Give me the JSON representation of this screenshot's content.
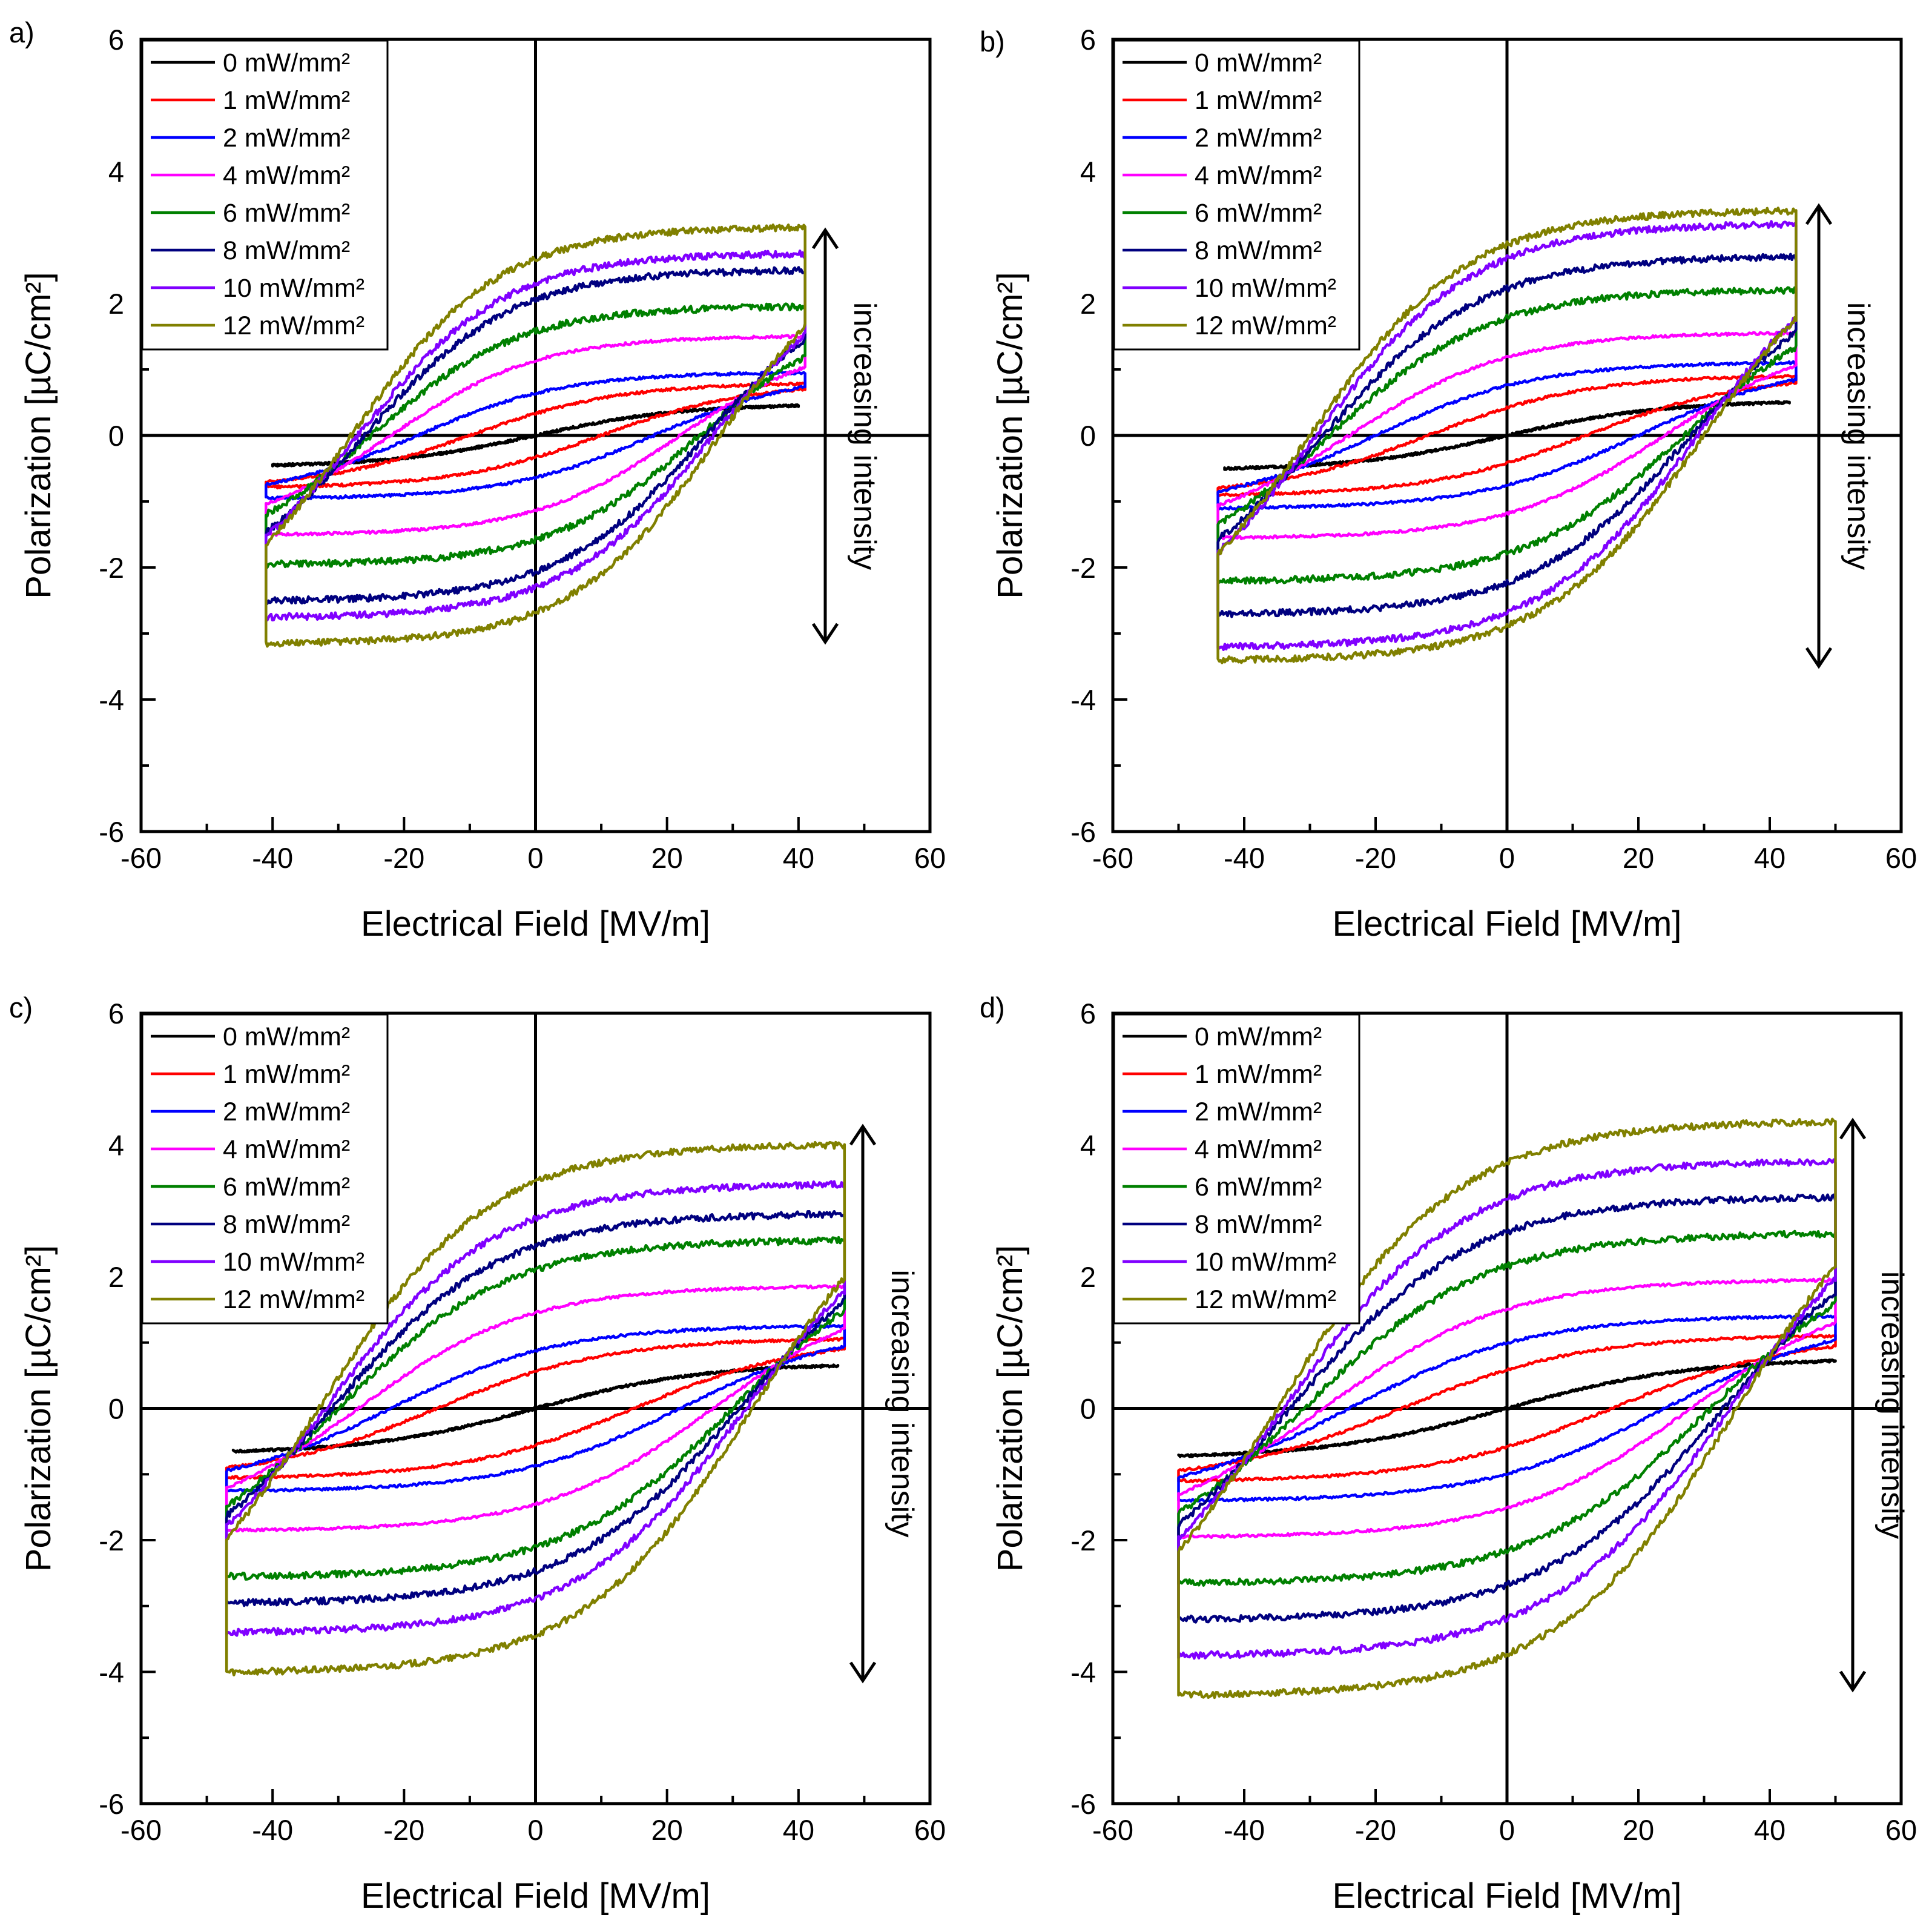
{
  "chart_data": [
    {
      "type": "line",
      "panel_label": "a)",
      "title": "",
      "xlabel": "Electrical Field [MV/m]",
      "ylabel": "Polarization [µC/cm²]",
      "xlim": [
        -60,
        60
      ],
      "ylim": [
        -6,
        6
      ],
      "xticks": [
        -60,
        -40,
        -20,
        0,
        20,
        40,
        60
      ],
      "yticks": [
        -6,
        -4,
        -2,
        0,
        2,
        4,
        6
      ],
      "annotation": "increasing intensity",
      "legend_position": "top-left",
      "series": [
        {
          "name": "0 mW/mm²",
          "color": "#000000",
          "emax": 40,
          "ps": 0.45,
          "ec": 0,
          "h": 0.1
        },
        {
          "name": "1 mW/mm²",
          "color": "#ff0000",
          "emax": 41,
          "ps": 0.78,
          "ec": 10,
          "h": 0.25
        },
        {
          "name": "2 mW/mm²",
          "color": "#0000ff",
          "emax": 41,
          "ps": 0.95,
          "ec": 18,
          "h": 0.45
        },
        {
          "name": "4 mW/mm²",
          "color": "#ff00ff",
          "emax": 41,
          "ps": 1.5,
          "ec": 22,
          "h": 0.9
        },
        {
          "name": "6 mW/mm²",
          "color": "#008000",
          "emax": 41,
          "ps": 1.95,
          "ec": 25,
          "h": 1.3
        },
        {
          "name": "8 mW/mm²",
          "color": "#00007f",
          "emax": 41,
          "ps": 2.5,
          "ec": 26,
          "h": 1.8
        },
        {
          "name": "10 mW/mm²",
          "color": "#8000ff",
          "emax": 41,
          "ps": 2.75,
          "ec": 27,
          "h": 2.0
        },
        {
          "name": "12 mW/mm²",
          "color": "#808000",
          "emax": 41,
          "ps": 3.15,
          "ec": 28,
          "h": 2.35
        }
      ]
    },
    {
      "type": "line",
      "panel_label": "b)",
      "title": "",
      "xlabel": "Electrical Field [MV/m]",
      "ylabel": "Polarization [µC/cm²]",
      "xlim": [
        -60,
        60
      ],
      "ylim": [
        -6,
        6
      ],
      "xticks": [
        -60,
        -40,
        -20,
        0,
        20,
        40,
        60
      ],
      "yticks": [
        -6,
        -4,
        -2,
        0,
        2,
        4,
        6
      ],
      "annotation": "increasing intensity",
      "legend_position": "top-left",
      "series": [
        {
          "name": "0 mW/mm²",
          "color": "#000000",
          "emax": 43,
          "ps": 0.5,
          "ec": 0,
          "h": 0.1
        },
        {
          "name": "1 mW/mm²",
          "color": "#ff0000",
          "emax": 44,
          "ps": 0.9,
          "ec": 12,
          "h": 0.3
        },
        {
          "name": "2 mW/mm²",
          "color": "#0000ff",
          "emax": 44,
          "ps": 1.1,
          "ec": 20,
          "h": 0.5
        },
        {
          "name": "4 mW/mm²",
          "color": "#ff00ff",
          "emax": 44,
          "ps": 1.55,
          "ec": 24,
          "h": 1.0
        },
        {
          "name": "6 mW/mm²",
          "color": "#008000",
          "emax": 44,
          "ps": 2.2,
          "ec": 27,
          "h": 1.6
        },
        {
          "name": "8 mW/mm²",
          "color": "#00007f",
          "emax": 44,
          "ps": 2.7,
          "ec": 28,
          "h": 2.1
        },
        {
          "name": "10 mW/mm²",
          "color": "#8000ff",
          "emax": 44,
          "ps": 3.2,
          "ec": 29,
          "h": 2.5
        },
        {
          "name": "12 mW/mm²",
          "color": "#808000",
          "emax": 44,
          "ps": 3.4,
          "ec": 30,
          "h": 2.75
        }
      ]
    },
    {
      "type": "line",
      "panel_label": "c)",
      "title": "",
      "xlabel": "Electrical Field [MV/m]",
      "ylabel": "Polarization [µC/cm²]",
      "xlim": [
        -60,
        60
      ],
      "ylim": [
        -6,
        6
      ],
      "xticks": [
        -60,
        -40,
        -20,
        0,
        20,
        40,
        60
      ],
      "yticks": [
        -6,
        -4,
        -2,
        0,
        2,
        4,
        6
      ],
      "annotation": "increasing intensity",
      "legend_position": "top-left",
      "series": [
        {
          "name": "0 mW/mm²",
          "color": "#000000",
          "emax": 46,
          "ps": 0.65,
          "ec": 0,
          "h": 0.1
        },
        {
          "name": "1 mW/mm²",
          "color": "#ff0000",
          "emax": 47,
          "ps": 1.05,
          "ec": 15,
          "h": 0.45
        },
        {
          "name": "2 mW/mm²",
          "color": "#0000ff",
          "emax": 47,
          "ps": 1.25,
          "ec": 22,
          "h": 0.7
        },
        {
          "name": "4 mW/mm²",
          "color": "#ff00ff",
          "emax": 47,
          "ps": 1.85,
          "ec": 27,
          "h": 1.3
        },
        {
          "name": "6 mW/mm²",
          "color": "#008000",
          "emax": 47,
          "ps": 2.55,
          "ec": 30,
          "h": 2.0
        },
        {
          "name": "8 mW/mm²",
          "color": "#00007f",
          "emax": 47,
          "ps": 2.95,
          "ec": 31,
          "h": 2.35
        },
        {
          "name": "10 mW/mm²",
          "color": "#8000ff",
          "emax": 47,
          "ps": 3.4,
          "ec": 32,
          "h": 2.8
        },
        {
          "name": "12 mW/mm²",
          "color": "#808000",
          "emax": 47,
          "ps": 4.0,
          "ec": 33,
          "h": 3.35
        }
      ]
    },
    {
      "type": "line",
      "panel_label": "d)",
      "title": "",
      "xlabel": "Electrical Field [MV/m]",
      "ylabel": "Polarization [µC/cm²]",
      "xlim": [
        -60,
        60
      ],
      "ylim": [
        -6,
        6
      ],
      "xticks": [
        -60,
        -40,
        -20,
        0,
        20,
        40,
        60
      ],
      "yticks": [
        -6,
        -4,
        -2,
        0,
        2,
        4,
        6
      ],
      "annotation": "increasing intensity",
      "legend_position": "top-left",
      "series": [
        {
          "name": "0 mW/mm²",
          "color": "#000000",
          "emax": 50,
          "ps": 0.72,
          "ec": 0,
          "h": 0.1
        },
        {
          "name": "1 mW/mm²",
          "color": "#ff0000",
          "emax": 50,
          "ps": 1.1,
          "ec": 16,
          "h": 0.5
        },
        {
          "name": "2 mW/mm²",
          "color": "#0000ff",
          "emax": 50,
          "ps": 1.4,
          "ec": 24,
          "h": 0.8
        },
        {
          "name": "4 mW/mm²",
          "color": "#ff00ff",
          "emax": 50,
          "ps": 1.95,
          "ec": 28,
          "h": 1.35
        },
        {
          "name": "6 mW/mm²",
          "color": "#008000",
          "emax": 50,
          "ps": 2.65,
          "ec": 31,
          "h": 2.0
        },
        {
          "name": "8 mW/mm²",
          "color": "#00007f",
          "emax": 50,
          "ps": 3.2,
          "ec": 33,
          "h": 2.5
        },
        {
          "name": "10 mW/mm²",
          "color": "#8000ff",
          "emax": 50,
          "ps": 3.75,
          "ec": 34,
          "h": 3.0
        },
        {
          "name": "12 mW/mm²",
          "color": "#808000",
          "emax": 50,
          "ps": 4.35,
          "ec": 35,
          "h": 3.6
        }
      ]
    }
  ]
}
